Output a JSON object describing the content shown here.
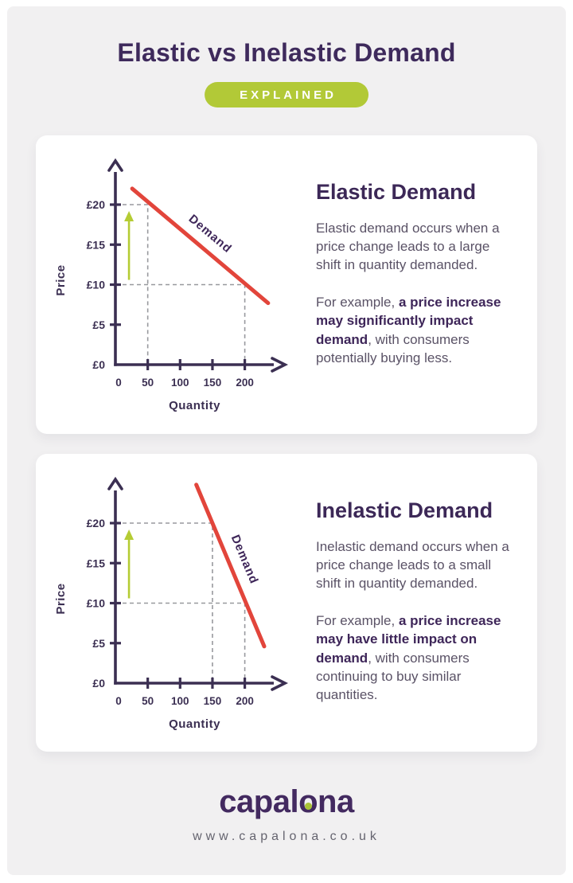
{
  "header": {
    "title": "Elastic vs Inelastic Demand",
    "badge": "EXPLAINED"
  },
  "colors": {
    "background": "#f1f0f1",
    "card": "#ffffff",
    "purple": "#3e2a5c",
    "body_text": "#5a5266",
    "badge_green": "#b2c937",
    "demand_red": "#e2453b",
    "arrow_green": "#b5cc34",
    "guide_gray": "#98999e",
    "axis_purple": "#3b2f52"
  },
  "panels": [
    {
      "heading": "Elastic Demand",
      "para1": "Elastic demand occurs when a price change leads to a large shift in quantity demanded.",
      "para2_prefix": "For example, ",
      "para2_bold": "a price increase may significantly impact demand",
      "para2_suffix": ", with consumers potentially buying less."
    },
    {
      "heading": "Inelastic Demand",
      "para1": "Inelastic demand occurs when a price change leads to a small shift in quantity demanded.",
      "para2_prefix": "For example, ",
      "para2_bold": "a price increase may have little impact on demand",
      "para2_suffix": ", with consumers continuing to buy similar quantities."
    }
  ],
  "chart_data": [
    {
      "type": "line",
      "title": "Elastic Demand",
      "xlabel": "Quantity",
      "ylabel": "Price",
      "x_tick_values": [
        0,
        50,
        100,
        150,
        200
      ],
      "x_tick_labels": [
        "0",
        "50",
        "100",
        "150",
        "200"
      ],
      "y_tick_values": [
        0,
        5,
        10,
        15,
        20
      ],
      "y_tick_labels": [
        "£0",
        "£5",
        "£10",
        "£15",
        "£20"
      ],
      "xlim": [
        0,
        240
      ],
      "ylim": [
        0,
        26
      ],
      "series": [
        {
          "name": "Demand",
          "color": "#e2453b",
          "points": [
            [
              26,
              22
            ],
            [
              236,
              7.7
            ]
          ]
        }
      ],
      "dashed_guides": [
        {
          "price": 20,
          "quantity": 50
        },
        {
          "price": 10,
          "quantity": 200
        }
      ],
      "price_increase_arrow": {
        "quantity": 21,
        "from_price": 10.6,
        "to_price": 19.2,
        "color": "#b5cc34"
      },
      "axis_color": "#3b2f52",
      "guide_color": "#98999e"
    },
    {
      "type": "line",
      "title": "Inelastic Demand",
      "xlabel": "Quantity",
      "ylabel": "Price",
      "x_tick_values": [
        0,
        50,
        100,
        150,
        200
      ],
      "x_tick_labels": [
        "0",
        "50",
        "100",
        "150",
        "200"
      ],
      "y_tick_values": [
        0,
        5,
        10,
        15,
        20
      ],
      "y_tick_labels": [
        "£0",
        "£5",
        "£10",
        "£15",
        "£20"
      ],
      "xlim": [
        0,
        240
      ],
      "ylim": [
        0,
        26
      ],
      "series": [
        {
          "name": "Demand",
          "color": "#e2453b",
          "points": [
            [
              125,
              24.8
            ],
            [
              230,
              4.6
            ]
          ]
        }
      ],
      "dashed_guides": [
        {
          "price": 20,
          "quantity": 150
        },
        {
          "price": 10,
          "quantity": 200
        }
      ],
      "price_increase_arrow": {
        "quantity": 21,
        "from_price": 10.6,
        "to_price": 19.2,
        "color": "#b5cc34"
      },
      "axis_color": "#3b2f52",
      "guide_color": "#98999e"
    }
  ],
  "footer": {
    "logo_pre": "capal",
    "logo_o": "o",
    "logo_post": "na",
    "url": "www.capalona.co.uk"
  }
}
